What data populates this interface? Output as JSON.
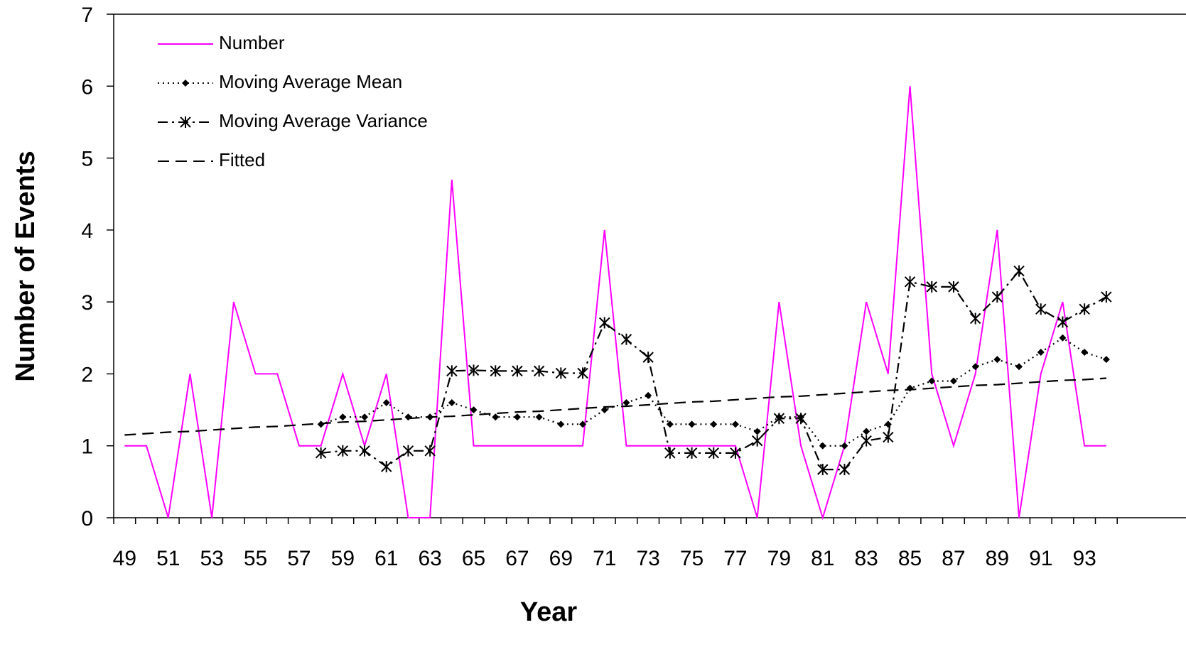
{
  "chart_data": {
    "type": "line",
    "x_label": "Year",
    "y_label": "Number of Events",
    "categories": [
      "49",
      null,
      "51",
      null,
      "53",
      null,
      "55",
      null,
      "57",
      null,
      "59",
      null,
      "61",
      null,
      "63",
      null,
      "65",
      null,
      "67",
      null,
      "69",
      null,
      "71",
      null,
      "73",
      null,
      "75",
      null,
      "77",
      null,
      "79",
      null,
      "81",
      null,
      "83",
      null,
      "85",
      null,
      "87",
      null,
      "89",
      null,
      "91",
      null,
      "93",
      null
    ],
    "ylim": [
      0,
      7
    ],
    "yticks": [
      0,
      1,
      2,
      3,
      4,
      5,
      6,
      7
    ],
    "legend": "upper-left",
    "series": [
      {
        "name": "Number",
        "color": "#ff00ff",
        "line_style": "solid",
        "marker": "none",
        "values": [
          1,
          1,
          0,
          2,
          0,
          3,
          2,
          2,
          1,
          1,
          2,
          1,
          2,
          0,
          0,
          4.7,
          1,
          1,
          1,
          1,
          1,
          1,
          4,
          1,
          1,
          1,
          1,
          1,
          1,
          0,
          3,
          1,
          0,
          1,
          3,
          2,
          6,
          2,
          1,
          2,
          4,
          0,
          2,
          3,
          1,
          1
        ]
      },
      {
        "name": "Moving Average Mean",
        "color": "#000000",
        "line_style": "dotted",
        "marker": "diamond",
        "values": [
          null,
          null,
          null,
          null,
          null,
          null,
          null,
          null,
          null,
          1.3,
          1.4,
          1.4,
          1.6,
          1.4,
          1.4,
          1.6,
          1.5,
          1.4,
          1.4,
          1.4,
          1.3,
          1.3,
          1.5,
          1.6,
          1.7,
          1.3,
          1.3,
          1.3,
          1.3,
          1.2,
          1.4,
          1.4,
          1.0,
          1.0,
          1.2,
          1.3,
          1.8,
          1.9,
          1.9,
          2.1,
          2.2,
          2.1,
          2.3,
          2.5,
          2.3,
          2.2
        ]
      },
      {
        "name": "Moving Average Variance",
        "color": "#000000",
        "line_style": "dash-dot",
        "marker": "asterisk",
        "values": [
          null,
          null,
          null,
          null,
          null,
          null,
          null,
          null,
          null,
          0.9,
          0.93,
          0.93,
          0.71,
          0.93,
          0.93,
          2.04,
          2.05,
          2.04,
          2.04,
          2.04,
          2.01,
          2.01,
          2.71,
          2.48,
          2.23,
          0.9,
          0.9,
          0.9,
          0.9,
          1.07,
          1.38,
          1.38,
          0.67,
          0.67,
          1.07,
          1.12,
          3.28,
          3.21,
          3.21,
          2.77,
          3.07,
          3.43,
          2.9,
          2.72,
          2.9,
          3.07
        ]
      },
      {
        "name": "Fitted",
        "color": "#000000",
        "line_style": "dashed",
        "marker": "none",
        "values": [
          1.15,
          1.17,
          1.19,
          1.2,
          1.22,
          1.24,
          1.26,
          1.27,
          1.29,
          1.31,
          1.33,
          1.34,
          1.36,
          1.38,
          1.4,
          1.41,
          1.43,
          1.45,
          1.47,
          1.48,
          1.5,
          1.52,
          1.54,
          1.55,
          1.57,
          1.59,
          1.61,
          1.62,
          1.64,
          1.66,
          1.68,
          1.69,
          1.71,
          1.73,
          1.75,
          1.77,
          1.78,
          1.8,
          1.82,
          1.84,
          1.85,
          1.87,
          1.89,
          1.91,
          1.92,
          1.94
        ]
      }
    ]
  }
}
